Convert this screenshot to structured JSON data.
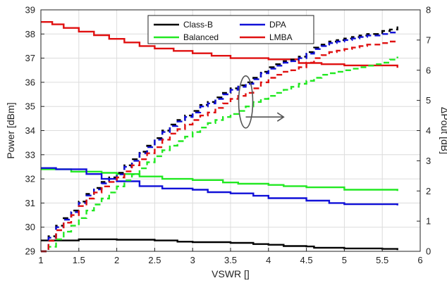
{
  "chart_data": {
    "type": "line",
    "xlabel": "VSWR []",
    "ylabel_left": "Power [dBm]",
    "ylabel_right": "ΔPout [dB]",
    "xlim": [
      1,
      6
    ],
    "ylim_left": [
      29,
      39
    ],
    "ylim_right": [
      0,
      8
    ],
    "xticks": [
      "1",
      "1.5",
      "2",
      "2.5",
      "3",
      "3.5",
      "4",
      "4.5",
      "5",
      "5.5",
      "6"
    ],
    "yticks_left": [
      "29",
      "30",
      "31",
      "32",
      "33",
      "34",
      "35",
      "36",
      "37",
      "38",
      "39"
    ],
    "yticks_right": [
      "0",
      "1",
      "2",
      "3",
      "4",
      "5",
      "6",
      "7",
      "8"
    ],
    "grid": true,
    "legend_placement": "top-center",
    "colors": {
      "Class-B": "#000000",
      "Balanced": "#22e822",
      "DPA": "#1010d8",
      "LMBA": "#e01010",
      "annotation": "#555555"
    },
    "series": [
      {
        "name": "Class-B",
        "axis": "left",
        "style": "solid",
        "x": [
          1.0,
          1.5,
          2.0,
          2.5,
          2.8,
          3.0,
          3.5,
          3.8,
          4.0,
          4.2,
          4.5,
          4.6,
          5.0,
          5.5,
          5.7
        ],
        "y": [
          29.45,
          29.5,
          29.48,
          29.45,
          29.4,
          29.38,
          29.35,
          29.3,
          29.27,
          29.22,
          29.2,
          29.15,
          29.12,
          29.1,
          29.05
        ]
      },
      {
        "name": "Balanced",
        "axis": "left",
        "style": "solid",
        "x": [
          1.0,
          1.4,
          1.8,
          2.0,
          2.3,
          2.6,
          3.0,
          3.4,
          3.6,
          4.0,
          4.2,
          4.5,
          5.0,
          5.3,
          5.7
        ],
        "y": [
          32.4,
          32.3,
          32.25,
          32.2,
          32.1,
          32.0,
          31.95,
          31.85,
          31.8,
          31.75,
          31.7,
          31.65,
          31.55,
          31.55,
          31.5
        ]
      },
      {
        "name": "DPA",
        "axis": "left",
        "style": "solid",
        "x": [
          1.0,
          1.2,
          1.6,
          1.8,
          2.0,
          2.3,
          2.6,
          3.0,
          3.2,
          3.5,
          3.8,
          4.0,
          4.5,
          4.8,
          5.0,
          5.3,
          5.7
        ],
        "y": [
          32.45,
          32.4,
          32.2,
          32.0,
          31.9,
          31.7,
          31.6,
          31.55,
          31.45,
          31.4,
          31.3,
          31.2,
          31.1,
          31.0,
          30.95,
          30.95,
          30.9
        ]
      },
      {
        "name": "LMBA",
        "axis": "left",
        "style": "solid",
        "x": [
          1.0,
          1.15,
          1.3,
          1.5,
          1.7,
          1.9,
          2.1,
          2.3,
          2.5,
          2.75,
          3.0,
          3.25,
          3.5,
          4.0,
          4.4,
          4.7,
          5.0,
          5.7
        ],
        "y": [
          38.5,
          38.4,
          38.25,
          38.1,
          37.95,
          37.8,
          37.65,
          37.5,
          37.4,
          37.3,
          37.2,
          37.1,
          37.0,
          36.95,
          36.8,
          36.75,
          36.7,
          36.6
        ]
      },
      {
        "name": "Class-B",
        "axis": "right",
        "style": "dashed",
        "x": [
          1.0,
          1.1,
          1.2,
          1.3,
          1.4,
          1.5,
          1.6,
          1.7,
          1.8,
          1.9,
          2.0,
          2.1,
          2.2,
          2.3,
          2.4,
          2.5,
          2.6,
          2.7,
          2.8,
          2.9,
          3.0,
          3.1,
          3.2,
          3.3,
          3.4,
          3.5,
          3.6,
          3.7,
          3.8,
          3.9,
          4.0,
          4.1,
          4.2,
          4.3,
          4.4,
          4.5,
          4.6,
          4.7,
          4.8,
          4.9,
          5.0,
          5.1,
          5.2,
          5.3,
          5.4,
          5.5,
          5.6,
          5.7
        ],
        "y": [
          0.0,
          0.5,
          0.85,
          1.1,
          1.35,
          1.65,
          1.9,
          2.1,
          2.3,
          2.45,
          2.6,
          2.85,
          3.05,
          3.3,
          3.5,
          3.75,
          4.0,
          4.2,
          4.35,
          4.5,
          4.65,
          4.85,
          4.95,
          5.1,
          5.25,
          5.4,
          5.5,
          5.6,
          5.75,
          5.95,
          6.1,
          6.2,
          6.3,
          6.35,
          6.45,
          6.6,
          6.75,
          6.85,
          6.95,
          7.0,
          7.05,
          7.1,
          7.15,
          7.2,
          7.2,
          7.3,
          7.35,
          7.45
        ]
      },
      {
        "name": "Balanced",
        "axis": "right",
        "style": "dashed",
        "x": [
          1.0,
          1.1,
          1.2,
          1.3,
          1.4,
          1.5,
          1.6,
          1.7,
          1.8,
          1.9,
          2.0,
          2.1,
          2.2,
          2.3,
          2.4,
          2.5,
          2.6,
          2.7,
          2.8,
          2.9,
          3.0,
          3.1,
          3.2,
          3.3,
          3.4,
          3.5,
          3.6,
          3.7,
          3.8,
          3.9,
          4.0,
          4.1,
          4.2,
          4.3,
          4.4,
          4.5,
          4.6,
          4.7,
          4.8,
          4.9,
          5.0,
          5.1,
          5.2,
          5.3,
          5.4,
          5.5,
          5.6,
          5.7
        ],
        "y": [
          0.0,
          0.15,
          0.4,
          0.65,
          0.85,
          1.1,
          1.35,
          1.55,
          1.75,
          1.95,
          2.15,
          2.35,
          2.55,
          2.75,
          2.95,
          3.15,
          3.35,
          3.5,
          3.65,
          3.8,
          3.95,
          4.1,
          4.25,
          4.35,
          4.45,
          4.55,
          4.65,
          4.8,
          4.95,
          5.05,
          5.15,
          5.25,
          5.35,
          5.45,
          5.55,
          5.65,
          5.75,
          5.85,
          5.9,
          5.95,
          6.0,
          6.05,
          6.1,
          6.15,
          6.2,
          6.25,
          6.35,
          6.45
        ]
      },
      {
        "name": "DPA",
        "axis": "right",
        "style": "dashed",
        "x": [
          1.0,
          1.1,
          1.2,
          1.3,
          1.4,
          1.5,
          1.6,
          1.7,
          1.8,
          1.9,
          2.0,
          2.1,
          2.2,
          2.3,
          2.4,
          2.5,
          2.6,
          2.7,
          2.8,
          2.9,
          3.0,
          3.1,
          3.2,
          3.3,
          3.4,
          3.5,
          3.6,
          3.7,
          3.8,
          3.9,
          4.0,
          4.1,
          4.2,
          4.3,
          4.4,
          4.5,
          4.6,
          4.7,
          4.8,
          4.9,
          5.0,
          5.1,
          5.2,
          5.3,
          5.4,
          5.5,
          5.6,
          5.7
        ],
        "y": [
          0.0,
          0.45,
          0.8,
          1.05,
          1.3,
          1.6,
          1.85,
          2.05,
          2.25,
          2.4,
          2.55,
          2.8,
          3.0,
          3.25,
          3.45,
          3.7,
          3.95,
          4.15,
          4.3,
          4.45,
          4.6,
          4.8,
          4.9,
          5.05,
          5.2,
          5.35,
          5.45,
          5.55,
          5.7,
          5.9,
          6.05,
          6.15,
          6.25,
          6.3,
          6.4,
          6.55,
          6.7,
          6.8,
          6.9,
          6.95,
          7.0,
          7.05,
          7.1,
          7.15,
          7.15,
          7.2,
          7.25,
          7.3
        ]
      },
      {
        "name": "LMBA",
        "axis": "right",
        "style": "dashed",
        "x": [
          1.0,
          1.1,
          1.2,
          1.3,
          1.4,
          1.5,
          1.6,
          1.7,
          1.8,
          1.9,
          2.0,
          2.1,
          2.2,
          2.3,
          2.4,
          2.5,
          2.6,
          2.7,
          2.8,
          2.9,
          3.0,
          3.1,
          3.2,
          3.3,
          3.4,
          3.5,
          3.6,
          3.7,
          3.8,
          3.9,
          4.0,
          4.1,
          4.2,
          4.3,
          4.4,
          4.5,
          4.6,
          4.7,
          4.8,
          4.9,
          5.0,
          5.1,
          5.2,
          5.3,
          5.4,
          5.5,
          5.6,
          5.7
        ],
        "y": [
          0.0,
          0.35,
          0.7,
          0.95,
          1.2,
          1.5,
          1.75,
          1.95,
          2.15,
          2.3,
          2.45,
          2.65,
          2.85,
          3.05,
          3.25,
          3.45,
          3.7,
          3.9,
          4.05,
          4.2,
          4.35,
          4.5,
          4.6,
          4.75,
          4.9,
          5.05,
          5.15,
          5.25,
          5.4,
          5.6,
          5.75,
          5.85,
          5.95,
          6.0,
          6.1,
          6.25,
          6.4,
          6.5,
          6.6,
          6.65,
          6.7,
          6.75,
          6.8,
          6.85,
          6.85,
          6.9,
          6.95,
          7.0
        ]
      }
    ],
    "legend": [
      "Class-B",
      "DPA",
      "Balanced",
      "LMBA"
    ]
  }
}
